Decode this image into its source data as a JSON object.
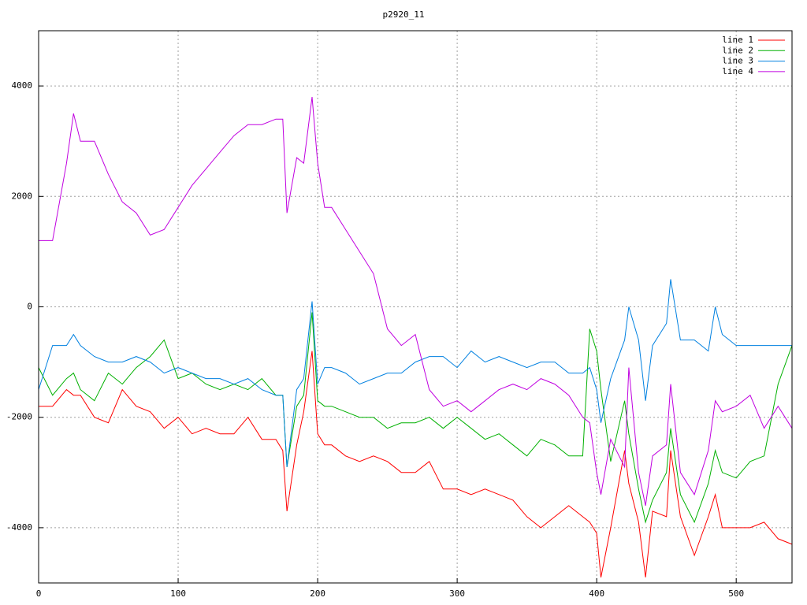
{
  "chart_data": {
    "type": "line",
    "title": "p2920_11",
    "x": [
      0,
      10,
      20,
      25,
      30,
      40,
      50,
      60,
      70,
      80,
      90,
      100,
      110,
      120,
      130,
      140,
      150,
      160,
      170,
      175,
      178,
      185,
      190,
      196,
      200,
      205,
      210,
      220,
      230,
      240,
      250,
      260,
      270,
      280,
      290,
      300,
      310,
      320,
      330,
      340,
      350,
      360,
      370,
      380,
      390,
      395,
      400,
      403,
      410,
      420,
      423,
      430,
      435,
      440,
      450,
      453,
      460,
      470,
      480,
      485,
      490,
      500,
      510,
      520,
      530,
      540
    ],
    "series": [
      {
        "name": "line 1",
        "color": "#ff0000",
        "values": [
          -1800,
          -1800,
          -1500,
          -1600,
          -1600,
          -2000,
          -2100,
          -1500,
          -1800,
          -1900,
          -2200,
          -2000,
          -2300,
          -2200,
          -2300,
          -2300,
          -2000,
          -2400,
          -2400,
          -2600,
          -3700,
          -2500,
          -1900,
          -800,
          -2300,
          -2500,
          -2500,
          -2700,
          -2800,
          -2700,
          -2800,
          -3000,
          -3000,
          -2800,
          -3300,
          -3300,
          -3400,
          -3300,
          -3400,
          -3500,
          -3800,
          -4000,
          -3800,
          -3600,
          -3800,
          -3900,
          -4100,
          -4900,
          -4000,
          -2600,
          -3200,
          -3900,
          -4900,
          -3700,
          -3800,
          -2600,
          -3800,
          -4500,
          -3800,
          -3400,
          -4000,
          -4000,
          -4000,
          -3900,
          -4200,
          -4300
        ]
      },
      {
        "name": "line 2",
        "color": "#00b000",
        "values": [
          -1100,
          -1600,
          -1300,
          -1200,
          -1500,
          -1700,
          -1200,
          -1400,
          -1100,
          -900,
          -600,
          -1300,
          -1200,
          -1400,
          -1500,
          -1400,
          -1500,
          -1300,
          -1600,
          -1600,
          -2900,
          -1800,
          -1600,
          -100,
          -1700,
          -1800,
          -1800,
          -1900,
          -2000,
          -2000,
          -2200,
          -2100,
          -2100,
          -2000,
          -2200,
          -2000,
          -2200,
          -2400,
          -2300,
          -2500,
          -2700,
          -2400,
          -2500,
          -2700,
          -2700,
          -400,
          -800,
          -1500,
          -2800,
          -1700,
          -2300,
          -3300,
          -3900,
          -3500,
          -3000,
          -2200,
          -3400,
          -3900,
          -3200,
          -2600,
          -3000,
          -3100,
          -2800,
          -2700,
          -1400,
          -700
        ]
      },
      {
        "name": "line 3",
        "color": "#0080e0",
        "values": [
          -1500,
          -700,
          -700,
          -500,
          -700,
          -900,
          -1000,
          -1000,
          -900,
          -1000,
          -1200,
          -1100,
          -1200,
          -1300,
          -1300,
          -1400,
          -1300,
          -1500,
          -1600,
          -1600,
          -2900,
          -1500,
          -1300,
          100,
          -1400,
          -1100,
          -1100,
          -1200,
          -1400,
          -1300,
          -1200,
          -1200,
          -1000,
          -900,
          -900,
          -1100,
          -800,
          -1000,
          -900,
          -1000,
          -1100,
          -1000,
          -1000,
          -1200,
          -1200,
          -1100,
          -1500,
          -2100,
          -1300,
          -600,
          0,
          -600,
          -1700,
          -700,
          -300,
          500,
          -600,
          -600,
          -800,
          0,
          -500,
          -700,
          -700,
          -700,
          -700,
          -700
        ]
      },
      {
        "name": "line 4",
        "color": "#c000e0",
        "values": [
          1200,
          1200,
          2600,
          3500,
          3000,
          3000,
          2400,
          1900,
          1700,
          1300,
          1400,
          1800,
          2200,
          2500,
          2800,
          3100,
          3300,
          3300,
          3400,
          3400,
          1700,
          2700,
          2600,
          3800,
          2600,
          1800,
          1800,
          1400,
          1000,
          600,
          -400,
          -700,
          -500,
          -1500,
          -1800,
          -1700,
          -1900,
          -1700,
          -1500,
          -1400,
          -1500,
          -1300,
          -1400,
          -1600,
          -2000,
          -2100,
          -3000,
          -3400,
          -2400,
          -2900,
          -1100,
          -3000,
          -3600,
          -2700,
          -2500,
          -1400,
          -3000,
          -3400,
          -2600,
          -1700,
          -1900,
          -1800,
          -1600,
          -2200,
          -1800,
          -2200
        ]
      }
    ],
    "xlim": [
      0,
      540
    ],
    "ylim": [
      -5000,
      5000
    ],
    "xticks": [
      0,
      100,
      200,
      300,
      400,
      500
    ],
    "yticks": [
      -4000,
      -2000,
      0,
      2000,
      4000
    ],
    "grid": true,
    "legend": "top-right"
  }
}
